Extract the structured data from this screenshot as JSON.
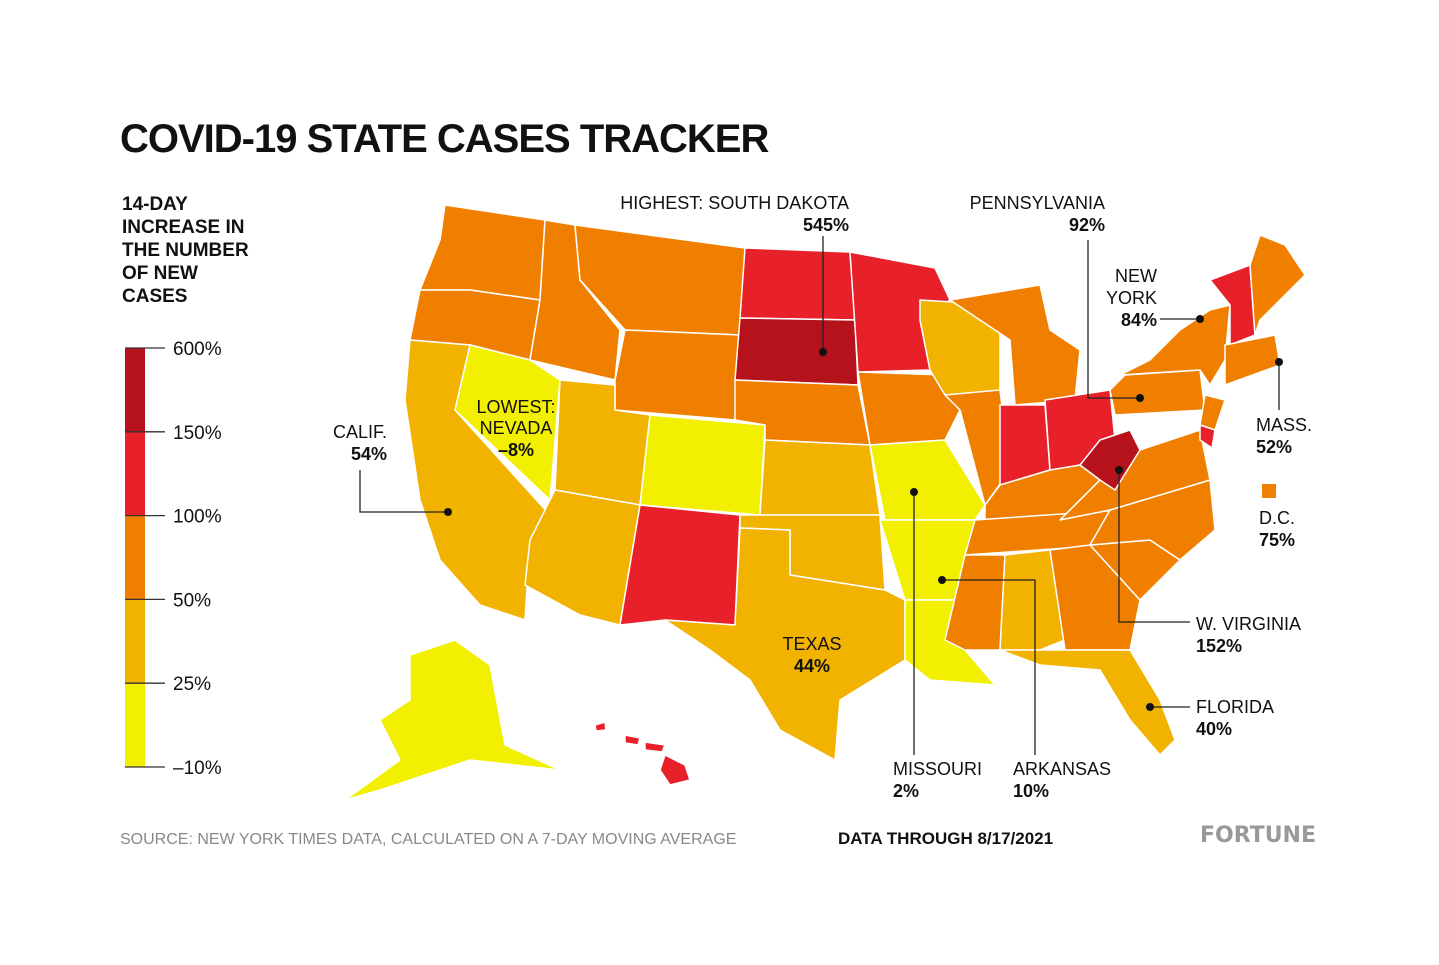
{
  "title": "COVID-19 STATE CASES TRACKER",
  "legend": {
    "title": [
      "14-DAY",
      "INCREASE IN",
      "THE NUMBER",
      "OF NEW",
      "CASES"
    ],
    "ticks": [
      "600%",
      "150%",
      "100%",
      "50%",
      "25%",
      "–10%"
    ],
    "colors": [
      "#b5121b",
      "#e8202a",
      "#f07f00",
      "#f2b200",
      "#f2ef00"
    ]
  },
  "annotations": [
    {
      "name": [
        "HIGHEST: SOUTH DAKOTA"
      ],
      "value": "545%"
    },
    {
      "name": [
        "PENNSYLVANIA"
      ],
      "value": "92%"
    },
    {
      "name": [
        "NEW",
        "YORK"
      ],
      "value": "84%"
    },
    {
      "name": [
        "CALIF."
      ],
      "value": "54%"
    },
    {
      "name": [
        "LOWEST:",
        "NEVADA"
      ],
      "value": "–8%"
    },
    {
      "name": [
        "MASS."
      ],
      "value": "52%"
    },
    {
      "name": [
        "D.C."
      ],
      "value": "75%"
    },
    {
      "name": [
        "TEXAS"
      ],
      "value": "44%"
    },
    {
      "name": [
        "W. VIRGINIA"
      ],
      "value": "152%"
    },
    {
      "name": [
        "FLORIDA"
      ],
      "value": "40%"
    },
    {
      "name": [
        "MISSOURI"
      ],
      "value": "2%"
    },
    {
      "name": [
        "ARKANSAS"
      ],
      "value": "10%"
    }
  ],
  "source": "SOURCE: NEW YORK TIMES DATA, CALCULATED ON A 7-DAY MOVING AVERAGE",
  "date": "DATA THROUGH 8/17/2021",
  "brand": "FORTUNE"
}
